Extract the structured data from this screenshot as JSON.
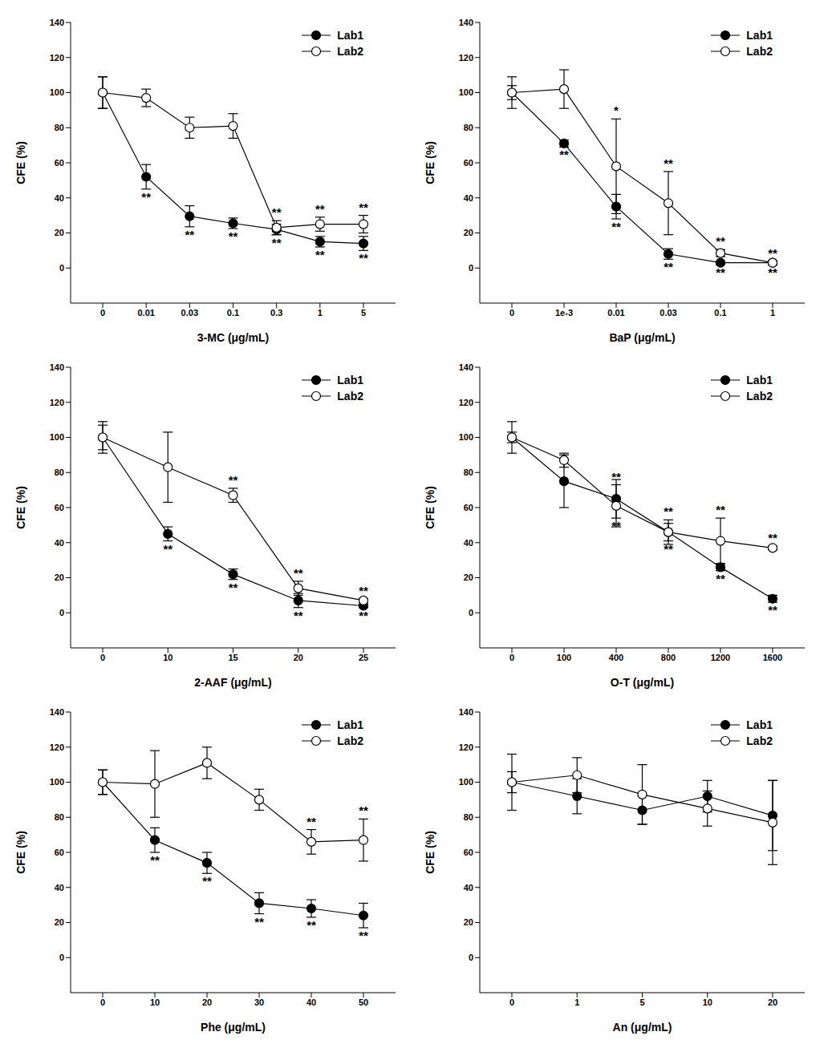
{
  "chart_data": [
    {
      "type": "line",
      "x_label": "3-MC (μg/mL)",
      "y_label": "CFE (%)",
      "categories": [
        "0",
        "0.01",
        "0.03",
        "0.1",
        "0.3",
        "1",
        "5"
      ],
      "ylim": [
        -20,
        140
      ],
      "yticks": [
        0,
        20,
        40,
        60,
        80,
        100,
        120,
        140
      ],
      "grid": false,
      "legend": "top-right",
      "series": [
        {
          "name": "Lab1",
          "color": "#000000",
          "marker": "filled circle",
          "values": [
            100,
            52,
            29.5,
            25.5,
            22,
            15,
            14
          ],
          "errors": [
            9,
            7,
            6,
            3,
            3,
            3,
            4
          ],
          "significance": [
            null,
            "**",
            "**",
            "**",
            "**",
            "**",
            "**"
          ]
        },
        {
          "name": "Lab2",
          "color": "#000000",
          "marker": "open circle",
          "values": [
            100,
            97,
            80,
            81,
            23,
            25,
            25
          ],
          "errors": [
            9,
            5,
            6,
            7,
            4,
            4,
            5
          ],
          "significance": [
            null,
            null,
            null,
            null,
            "**",
            "**",
            "**"
          ]
        }
      ]
    },
    {
      "type": "line",
      "x_label": "BaP (μg/mL)",
      "y_label": "CFE (%)",
      "categories": [
        "0",
        "1e-3",
        "0.01",
        "0.03",
        "0.1",
        "1"
      ],
      "ylim": [
        -20,
        140
      ],
      "yticks": [
        0,
        20,
        40,
        60,
        80,
        100,
        120,
        140
      ],
      "grid": false,
      "legend": "top-right",
      "series": [
        {
          "name": "Lab1",
          "color": "#000000",
          "marker": "filled circle",
          "values": [
            100,
            71,
            35,
            8,
            3,
            3
          ],
          "errors": [
            4,
            2,
            7,
            3,
            1,
            1
          ],
          "significance": [
            null,
            "**",
            "**",
            "**",
            "**",
            "**"
          ]
        },
        {
          "name": "Lab2",
          "color": "#000000",
          "marker": "open circle",
          "values": [
            100,
            102,
            58,
            37,
            8.5,
            3
          ],
          "errors": [
            9,
            11,
            27,
            18,
            2,
            1
          ],
          "significance": [
            null,
            null,
            "*",
            "**",
            "**",
            "**"
          ]
        }
      ]
    },
    {
      "type": "line",
      "x_label": "2-AAF (μg/mL)",
      "y_label": "CFE (%)",
      "categories": [
        "0",
        "10",
        "15",
        "20",
        "25"
      ],
      "ylim": [
        -20,
        140
      ],
      "yticks": [
        0,
        20,
        40,
        60,
        80,
        100,
        120,
        140
      ],
      "grid": false,
      "legend": "top-right",
      "series": [
        {
          "name": "Lab1",
          "color": "#000000",
          "marker": "filled circle",
          "values": [
            100,
            45,
            22,
            7,
            4
          ],
          "errors": [
            9,
            4,
            3,
            4,
            1
          ],
          "significance": [
            null,
            "**",
            "**",
            "**",
            "**"
          ]
        },
        {
          "name": "Lab2",
          "color": "#000000",
          "marker": "open circle",
          "values": [
            100,
            83,
            67,
            14,
            7
          ],
          "errors": [
            7,
            20,
            4,
            4,
            1
          ],
          "significance": [
            null,
            null,
            "**",
            "**",
            "**"
          ]
        }
      ]
    },
    {
      "type": "line",
      "x_label": "O-T (μg/mL)",
      "y_label": "CFE (%)",
      "categories": [
        "0",
        "100",
        "400",
        "800",
        "1200",
        "1600"
      ],
      "ylim": [
        -20,
        140
      ],
      "yticks": [
        0,
        20,
        40,
        60,
        80,
        100,
        120,
        140
      ],
      "grid": false,
      "legend": "top-right",
      "series": [
        {
          "name": "Lab1",
          "color": "#000000",
          "marker": "filled circle",
          "values": [
            100,
            75,
            65,
            46,
            26,
            8
          ],
          "errors": [
            9,
            15,
            11,
            5,
            2,
            2
          ],
          "significance": [
            null,
            null,
            "**",
            "**",
            "**",
            "**"
          ]
        },
        {
          "name": "Lab2",
          "color": "#000000",
          "marker": "open circle",
          "values": [
            100,
            87,
            61,
            46,
            41,
            37
          ],
          "errors": [
            3,
            4,
            12,
            7,
            13,
            1
          ],
          "significance": [
            null,
            null,
            "**",
            "**",
            "**",
            "**"
          ]
        }
      ]
    },
    {
      "type": "line",
      "x_label": "Phe (μg/mL)",
      "y_label": "CFE (%)",
      "categories": [
        "0",
        "10",
        "20",
        "30",
        "40",
        "50"
      ],
      "ylim": [
        -20,
        140
      ],
      "yticks": [
        0,
        20,
        40,
        60,
        80,
        100,
        120,
        140
      ],
      "grid": false,
      "legend": "top-right",
      "series": [
        {
          "name": "Lab1",
          "color": "#000000",
          "marker": "filled circle",
          "values": [
            100,
            67,
            54,
            31,
            28,
            24
          ],
          "errors": [
            7,
            7,
            6,
            6,
            5,
            7
          ],
          "significance": [
            null,
            "**",
            "**",
            "**",
            "**",
            "**"
          ]
        },
        {
          "name": "Lab2",
          "color": "#000000",
          "marker": "open circle",
          "values": [
            100,
            99,
            111,
            90,
            66,
            67
          ],
          "errors": [
            7,
            19,
            9,
            6,
            7,
            12
          ],
          "significance": [
            null,
            null,
            null,
            null,
            "**",
            "**"
          ]
        }
      ]
    },
    {
      "type": "line",
      "x_label": "An (μg/mL)",
      "y_label": "CFE (%)",
      "categories": [
        "0",
        "1",
        "5",
        "10",
        "20"
      ],
      "ylim": [
        -20,
        140
      ],
      "yticks": [
        0,
        20,
        40,
        60,
        80,
        100,
        120,
        140
      ],
      "grid": false,
      "legend": "top-right",
      "series": [
        {
          "name": "Lab1",
          "color": "#000000",
          "marker": "filled circle",
          "values": [
            100,
            92,
            84,
            92,
            81
          ],
          "errors": [
            6,
            10,
            8,
            9,
            20
          ],
          "significance": [
            null,
            null,
            null,
            null,
            null
          ]
        },
        {
          "name": "Lab2",
          "color": "#000000",
          "marker": "open circle",
          "values": [
            100,
            104,
            93,
            85,
            77
          ],
          "errors": [
            16,
            10,
            17,
            10,
            24
          ],
          "significance": [
            null,
            null,
            null,
            null,
            null
          ]
        }
      ]
    }
  ]
}
